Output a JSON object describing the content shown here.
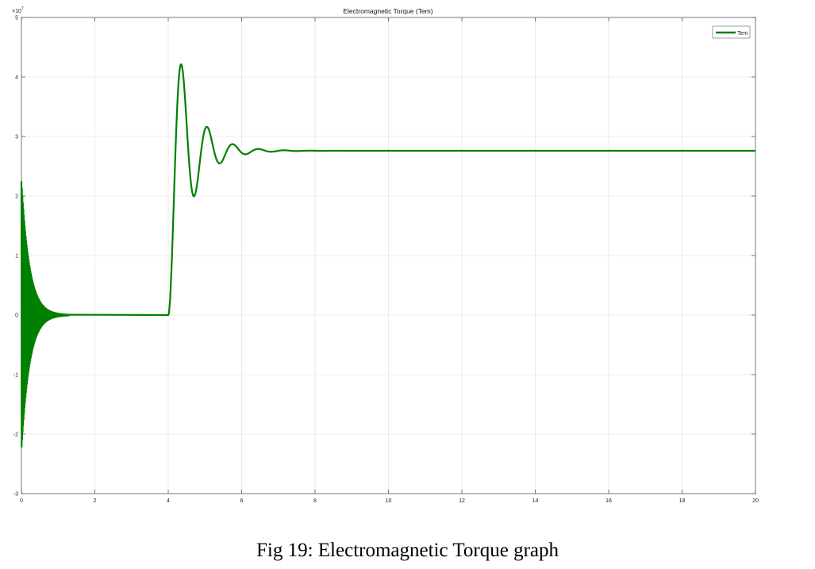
{
  "chart_data": {
    "type": "line",
    "title": "Electromagnetic Torque (Tem)",
    "xlabel": "",
    "ylabel": "",
    "xlim": [
      0,
      20
    ],
    "ylim": [
      -3,
      5
    ],
    "y_exponent_label": "×10",
    "y_exponent_power": "7",
    "xticks": [
      "0",
      "2",
      "4",
      "6",
      "8",
      "10",
      "12",
      "14",
      "16",
      "18",
      "20"
    ],
    "yticks": [
      "-3",
      "-2",
      "-1",
      "0",
      "1",
      "2",
      "3",
      "4",
      "5"
    ],
    "grid": true,
    "legend": {
      "position": "top-right",
      "entries": [
        "Tem"
      ]
    },
    "series": [
      {
        "name": "Tem",
        "color": "#008000",
        "description_points": {
          "startup_peak": [
            0.02,
            2.25
          ],
          "startup_trough": [
            0.02,
            -2.28
          ],
          "startup_decay_end": 1.3,
          "step_time": 4.0,
          "overshoot_peak": [
            4.4,
            4.2
          ],
          "first_trough": [
            4.75,
            2.18
          ],
          "second_peak": [
            5.2,
            2.98
          ],
          "second_trough": [
            5.65,
            2.68
          ],
          "steady_state": 2.76,
          "end_time": 20
        }
      }
    ]
  },
  "caption": "Fig 19: Electromagnetic Torque graph"
}
